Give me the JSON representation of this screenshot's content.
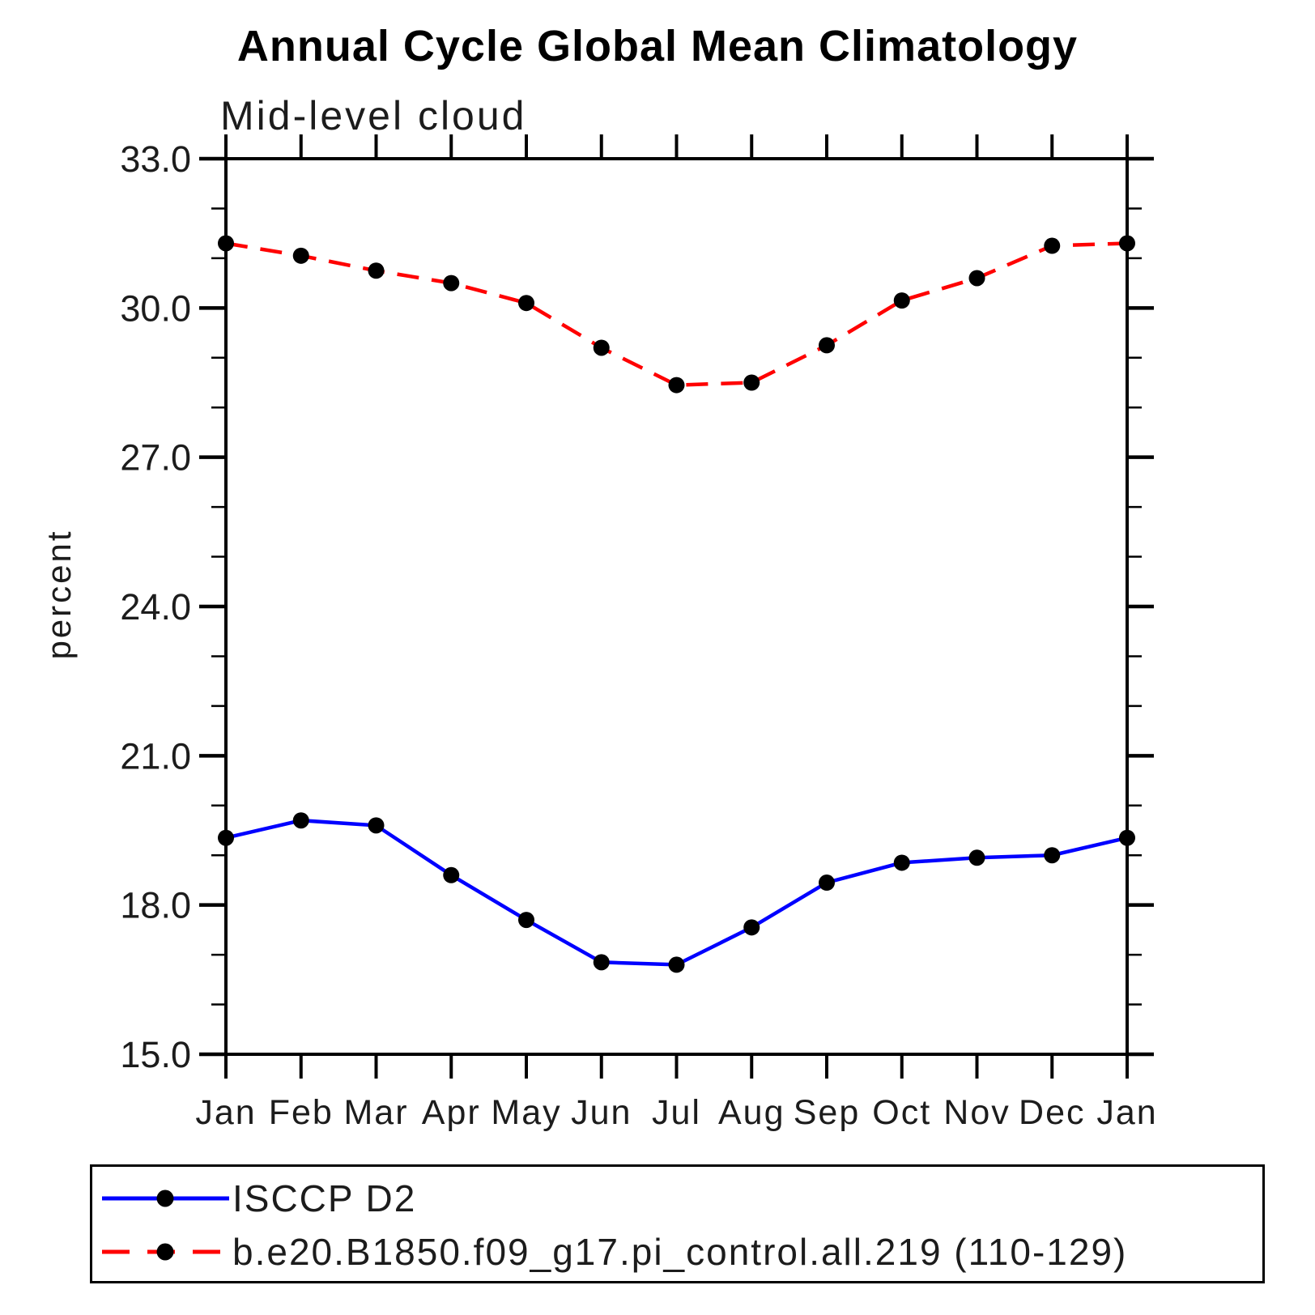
{
  "header": {
    "title": "Annual Cycle Global Mean Climatology",
    "subtitle": "Mid-level cloud"
  },
  "axes": {
    "y_label": "percent",
    "y_tick_labels": [
      "33.0",
      "30.0",
      "27.0",
      "24.0",
      "21.0",
      "18.0",
      "15.0"
    ],
    "x_tick_labels": [
      "Jan",
      "Feb",
      "Mar",
      "Apr",
      "May",
      "Jun",
      "Jul",
      "Aug",
      "Sep",
      "Oct",
      "Nov",
      "Dec",
      "Jan"
    ]
  },
  "legend": {
    "items": [
      {
        "label": "ISCCP D2",
        "color": "#0000ff",
        "line_style": "solid",
        "marker_color": "#000000"
      },
      {
        "label": "b.e20.B1850.f09_g17.pi_control.all.219 (110-129)",
        "color": "#ff0000",
        "line_style": "dashed",
        "marker_color": "#000000"
      }
    ]
  },
  "chart_data": {
    "type": "line",
    "title": "Annual Cycle Global Mean Climatology",
    "subtitle": "Mid-level cloud",
    "xlabel": "",
    "ylabel": "percent",
    "x": [
      "Jan",
      "Feb",
      "Mar",
      "Apr",
      "May",
      "Jun",
      "Jul",
      "Aug",
      "Sep",
      "Oct",
      "Nov",
      "Dec",
      "Jan"
    ],
    "series": [
      {
        "name": "ISCCP D2",
        "color": "#0000ff",
        "line_style": "solid",
        "marker": "filled-circle",
        "marker_color": "#000000",
        "values": [
          19.35,
          19.7,
          19.6,
          18.6,
          17.7,
          16.85,
          16.8,
          17.55,
          18.45,
          18.85,
          18.95,
          19.0,
          19.35
        ]
      },
      {
        "name": "b.e20.B1850.f09_g17.pi_control.all.219 (110-129)",
        "color": "#ff0000",
        "line_style": "dashed",
        "marker": "filled-circle",
        "marker_color": "#000000",
        "values": [
          31.3,
          31.05,
          30.75,
          30.5,
          30.1,
          29.2,
          28.45,
          28.5,
          29.25,
          30.15,
          30.6,
          31.25,
          31.3
        ]
      }
    ],
    "ylim": [
      15.0,
      33.0
    ],
    "ytick_major": [
      15,
      18,
      21,
      24,
      27,
      30,
      33
    ],
    "ytick_major_labels": [
      "15.0",
      "18.0",
      "21.0",
      "24.0",
      "27.0",
      "30.0",
      "33.0"
    ],
    "ytick_minor_step": 1,
    "grid": false,
    "frame": true,
    "tick_direction": "out",
    "legend_position": "bottom-left-box"
  }
}
